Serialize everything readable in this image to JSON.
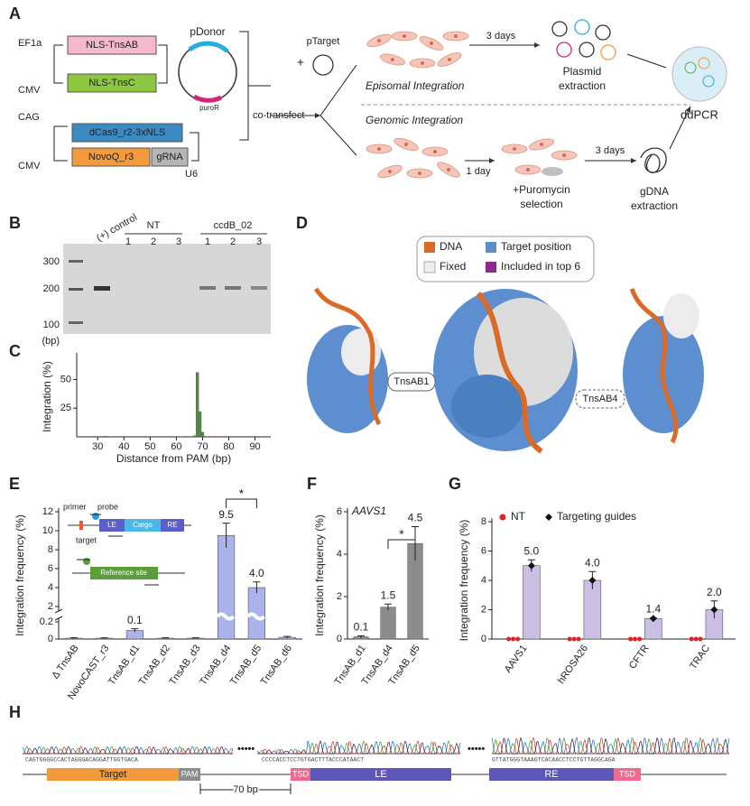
{
  "panel_labels": [
    "A",
    "B",
    "C",
    "D",
    "E",
    "F",
    "G",
    "H"
  ],
  "panel_a": {
    "promoter_1": "EF1a",
    "gene_1": "NLS-TnsAB",
    "promoter_2": "CMV",
    "gene_2": "NLS-TnsC",
    "donor": "pDonor",
    "marker": "puroR",
    "promoter_3": "CAG",
    "gene_3": "dCas9_r2-3xNLS",
    "promoter_4": "CMV",
    "gene_4": "NovoQ_r3",
    "gene_5": "gRNA",
    "promoter_5": "U6",
    "transfect": "co-transfect",
    "target": "pTarget",
    "plus": "+",
    "time_1": "3 days",
    "plasmid_1": "Plasmid",
    "plasmid_2": "extraction",
    "episomal": "Episomal Integration",
    "genomic": "Genomic Integration",
    "time_2": "1 day",
    "selection_1": "+Puromycin",
    "selection_2": "selection",
    "time_3": "3 days",
    "gdna_1": "gDNA",
    "gdna_2": "extraction",
    "readout": "ddPCR"
  },
  "panel_b": {
    "control": "(+) control",
    "group_1": "NT",
    "group_2": "ccdB_02",
    "lanes": [
      "1",
      "2",
      "3",
      "1",
      "2",
      "3"
    ],
    "ladder": [
      "300",
      "200",
      "100"
    ],
    "unit": "(bp)"
  },
  "panel_d": {
    "legend": [
      "DNA",
      "Target position",
      "Fixed",
      "Included in top 6"
    ],
    "left": "TnsAB1",
    "right": "TnsAB4"
  },
  "panel_e_inset": {
    "primer": "primer",
    "probe": "probe",
    "target": "target",
    "le": "LE",
    "cargo": "Cargo",
    "re": "RE",
    "reference": "Reference site"
  },
  "panel_h": {
    "seq_1": "CAGTGGGGCCACTAGGGACAGGATTGGTGACA",
    "seq_2": "CCCCACCTCCTGTGACTTTACCCATAACT",
    "seq_3": "GTTATGGGTAAAGTCACAACCTCCTGTTAGGCAGA",
    "target": "Target",
    "pam": "PAM",
    "tsd_1": "TSD",
    "le": "LE",
    "re": "RE",
    "tsd_2": "TSD",
    "distance": "70 bp"
  },
  "chart_data": [
    {
      "type": "bar",
      "x": [
        33,
        47,
        52,
        57,
        62,
        67,
        68,
        69,
        70,
        71
      ],
      "values": [
        0.5,
        0.3,
        0.3,
        0.3,
        0.3,
        1,
        56,
        22,
        4,
        0.4
      ],
      "color": "#5b8c4b",
      "xlim": [
        22,
        96
      ],
      "xticks": [
        30,
        40,
        50,
        60,
        70,
        80,
        90
      ],
      "ylim": [
        0,
        70
      ],
      "yticks": [
        25,
        50
      ],
      "xlabel": "Distance from PAM (bp)",
      "ylabel": "Integration (%)"
    },
    {
      "type": "bar",
      "categories": [
        "Δ TnsAB",
        "NovoCAST_r3",
        "TnsAB_d1",
        "TnsAB_d2",
        "TnsAB_d3",
        "TnsAB_d4",
        "TnsAB_d5",
        "TnsAB_d6"
      ],
      "values": [
        0.01,
        0.01,
        0.1,
        0.01,
        0.01,
        9.5,
        4.0,
        0.02
      ],
      "errors": [
        0.005,
        0.005,
        0.02,
        0.005,
        0.005,
        1.3,
        0.6,
        0.01
      ],
      "value_labels": [
        null,
        null,
        "0.1",
        null,
        null,
        "9.5",
        "4.0",
        null
      ],
      "color": "#aab3ea",
      "ylim": [
        0,
        12
      ],
      "yticks": [
        0,
        0.2,
        2,
        4,
        6,
        8,
        10,
        12
      ],
      "axis_break": true,
      "ylabel": "Integration frequency (%)",
      "annotations": [
        "*"
      ]
    },
    {
      "type": "bar",
      "subtitle": "AAVS1",
      "categories": [
        "TnsAB_d1",
        "TnsAB_d4",
        "TnsAB_d5"
      ],
      "values": [
        0.1,
        1.5,
        4.5
      ],
      "errors": [
        0.05,
        0.15,
        0.8
      ],
      "value_labels": [
        "0.1",
        "1.5",
        "4.5"
      ],
      "color": "#8c8c8c",
      "ylim": [
        0,
        6
      ],
      "yticks": [
        0,
        2,
        4,
        6
      ],
      "ylabel": "Integration frequency (%)",
      "annotations": [
        "*"
      ]
    },
    {
      "type": "bar",
      "categories": [
        "AAVS1",
        "hROSA26",
        "CFTR",
        "TRAC"
      ],
      "series": [
        {
          "name": "NT",
          "type": "scatter",
          "marker": "circle",
          "color": "#e02424",
          "values": [
            0,
            0,
            0,
            0
          ]
        },
        {
          "name": "Targeting guides",
          "type": "bar",
          "marker": "diamond",
          "color": "#cbbfe6",
          "values": [
            5.0,
            4.0,
            1.4,
            2.0
          ],
          "errors": [
            0.4,
            0.6,
            0.05,
            0.6
          ],
          "value_labels": [
            "5.0",
            "4.0",
            "1.4",
            "2.0"
          ]
        }
      ],
      "ylim": [
        0,
        8
      ],
      "yticks": [
        0,
        2,
        4,
        6,
        8
      ],
      "ylabel": "Integration frequency (%)"
    }
  ]
}
